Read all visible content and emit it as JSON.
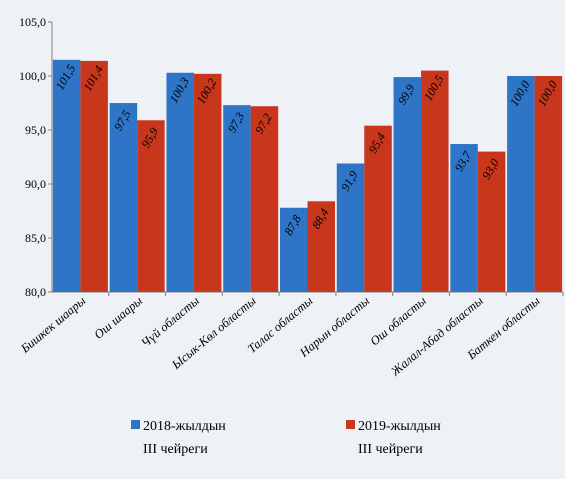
{
  "chart_data": {
    "type": "bar",
    "categories": [
      "Бишкек шаары",
      "Ош шаары",
      "Чүй областы",
      "Ысык-Көл областы",
      "Талас областы",
      "Нарын областы",
      "Ош областы",
      "Жалал-Абад областы",
      "Баткен областы"
    ],
    "series": [
      {
        "name": "2018-жылдын III чейреги",
        "legend_lines": [
          "2018-жылдын",
          "III чейреги"
        ],
        "values": [
          101.5,
          97.5,
          100.3,
          97.3,
          87.8,
          91.9,
          99.9,
          93.7,
          100.0
        ],
        "labels": [
          "101,5",
          "97,5",
          "100,3",
          "97,3",
          "87,8",
          "91,9",
          "99,9",
          "93,7",
          "100,0"
        ],
        "color": "#2e75c7"
      },
      {
        "name": "2019-жылдын III чейреги",
        "legend_lines": [
          "2019-жылдын",
          "III чейреги"
        ],
        "values": [
          101.4,
          95.9,
          100.2,
          97.2,
          88.4,
          95.4,
          100.5,
          93.0,
          100.0
        ],
        "labels": [
          "101,4",
          "95,9",
          "100,2",
          "97,2",
          "88,4",
          "95,4",
          "100,5",
          "93,0",
          "100,0"
        ],
        "color": "#c8361c"
      }
    ],
    "ylim": [
      80,
      105
    ],
    "yticks": [
      80,
      85,
      90,
      95,
      100,
      105
    ],
    "ytick_labels": [
      "80,0",
      "85,0",
      "90,0",
      "95,0",
      "100,0",
      "105,0"
    ],
    "grid": false,
    "legend_position": "bottom"
  }
}
